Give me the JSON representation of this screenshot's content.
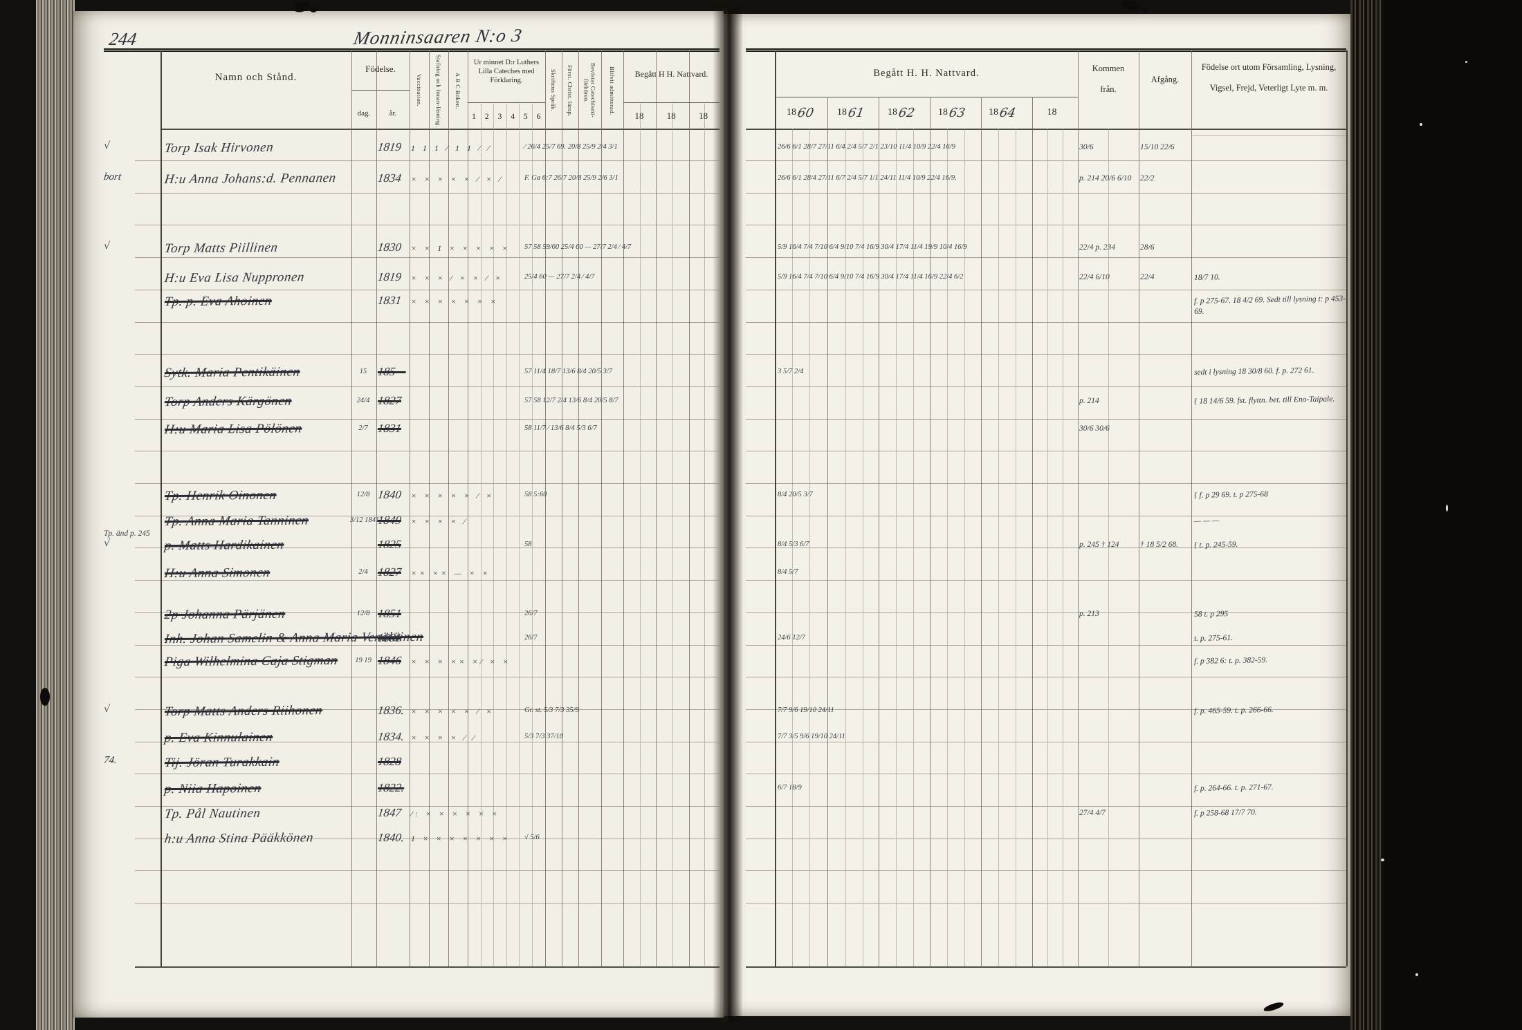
{
  "scan": {
    "page_number": "244",
    "title": "Monninsaaren N:o 3",
    "margin_note": "Tp. änd p. 245"
  },
  "left_header": {
    "namn": "Namn och Stånd.",
    "fodelse": "Födelse.",
    "dag": "dag.",
    "ar": "år.",
    "vaccination": "Vaccination.",
    "stafning": "Stafning och Innan-läsning.",
    "abc": "A B C Boken.",
    "cateches": "Ur minnet D:r Luthers Lilla Cateches med Förklaring.",
    "cateches_cols": [
      "1",
      "2",
      "3",
      "4",
      "5",
      "6"
    ],
    "skriftens": "Skriftens Språk.",
    "forst": "Först. Christ. lärop.",
    "bevistat": "Bevistat Catechismi-förhören.",
    "blifvit": "Blifvit admitterad.",
    "begatt": "Begått H H. Nattvard.",
    "begatt_years": [
      "18",
      "18",
      "18"
    ]
  },
  "right_header": {
    "begatt": "Begått H. H. Nattvard.",
    "years": [
      {
        "printed": "18",
        "written": "60"
      },
      {
        "printed": "18",
        "written": "61"
      },
      {
        "printed": "18",
        "written": "62"
      },
      {
        "printed": "18",
        "written": "63"
      },
      {
        "printed": "18",
        "written": "64"
      },
      {
        "printed": "18",
        "written": ""
      }
    ],
    "kommen": "Kommen",
    "kommen2": "från.",
    "afgang": "Afgång.",
    "fodelseort": "Födelse ort utom Församling, Lysning,",
    "fodelseort2": "Vigsel, Frejd, Veterligt Lyte m. m."
  },
  "rows": [
    {
      "margin": "√",
      "name": "Torp Isak Hirvonen",
      "ar": "1819",
      "marks": "1  1  1  ⁄  1  1  ⁄  ⁄",
      "ldates": "⁄     26/4 25/7 69.   20/8 25/9   2/4  3/1",
      "rdates": "26/6      6/1 28/7 27/11 6/4       2/4 5/7     2/1 23/10     11/4 10/9     22/4 16/9",
      "kommen": "30/6",
      "afgang": "15/10 22/6",
      "note": ""
    },
    {
      "margin": "bort",
      "name": "H:u Anna Johans:d. Pennanen",
      "ar": "1834",
      "marks": "×  ×  ×  ×  ×  ⁄  ×  ⁄",
      "ldates": "F. Ga 6:7    26/7    20/8 25/9    2/6  3/1",
      "rdates": "26/6      6/1 28/4 27/11 6/7       2/4 5/7     1/1 24/11     11/4 10/9     22/4 16/9.",
      "kommen": "p. 214   20/6  6/10",
      "afgang": "22/2",
      "note": ""
    },
    {
      "margin": "√",
      "name": "Torp Matts Piillinen",
      "ar": "1830",
      "marks": "× ×  1  ×  ×  ×  ×  ×",
      "ldates": "57 58  59/60    25/4 60 —   27/7  2/4    ⁄   4/7",
      "rdates": "5/9 16/4    7/4 7/10   6/4 9/10    7/4 16/9    30/4 17/4    11/4 19/9    10/4 16/9",
      "kommen": "22/4   p. 234",
      "afgang": "28/6",
      "note": ""
    },
    {
      "name": "H:u Eva Lisa Nuppronen",
      "ar": "1819",
      "marks": "×  ×  ×  ⁄  ×  ×  ⁄  ×",
      "ldates": "25/4 60 —    27/7  2/4    ⁄   4/7",
      "rdates": "5/9 16/4    7/4 7/10   6/4 9/10    7/4 16/9    30/4 17/4    11/4 16/9    22/4  6/2",
      "kommen": "22/4   6/10",
      "afgang": "22/4",
      "note": "18/7 10."
    },
    {
      "name": "Tp. p. Eva Ahoinen",
      "struck": true,
      "ar": "1831",
      "marks": "×  ×  ×  ×  ×  ×  ×",
      "kommen": "",
      "note": "f. p 275-67.  18 4/2 69.  Sedt till lysning  t: p 453-69."
    },
    {
      "name": "Sytk. Maria Pentikäinen",
      "struck": true,
      "dag": "15",
      "ar": "185—",
      "struckAr": true,
      "ldates": "57      11/4 18/7   13/6     8/4 20/5 3/7",
      "rdates": "3     5/7      2/4",
      "note": "sedt i lysning 18 30/8 60.   f. p. 272 61."
    },
    {
      "name": "Torp Anders Kärgönen",
      "struck": true,
      "dag": "24/4",
      "ar": "1827",
      "struckAr": true,
      "ldates": "57 58    12/7  2/4    13/6     8/4 20/5 8/7",
      "kommen": "p. 214",
      "note": "{ 18 14/6 59. fst. flyttn. bet. till Eno-Taipale."
    },
    {
      "name": "H:u Maria Lisa Pölönen",
      "struck": true,
      "dag": "2/7",
      "ar": "1831",
      "struckAr": true,
      "ldates": "58    11/7  ⁄    13/6     8/4 5/3 6/7",
      "kommen": "30/6    30/6",
      "note": ""
    },
    {
      "name": "Tp. Henrik Oinonen",
      "struck": true,
      "dag": "12/8",
      "ar": "1840",
      "marks": "×  ×  ×  ×  ×  ⁄  ×",
      "ldates": "58  5:60",
      "rdates": "8/4 20/5 3/7",
      "note": "{ f. p 29 69.   t. p 275-68"
    },
    {
      "name": "Tp. Anna Maria Tanninen",
      "struck": true,
      "dag": "3/12  1841.",
      "ar": "1849",
      "struckAr": true,
      "marks": "×  ×  ×  ×  ⁄",
      "note": "—   —    —"
    },
    {
      "margin": "√",
      "name": "p. Matts Hardikainen",
      "struck": true,
      "ar": "1825",
      "struckAr": true,
      "ldates": "58",
      "rdates": "8/4  5/3  6/7",
      "kommen": "p. 245 †   124",
      "afgang": "† 18 5/2 68.",
      "note": "{ t. p. 245-59."
    },
    {
      "name": "H:u Anna Simonen",
      "struck": true,
      "dag": "2/4",
      "ar": "1827",
      "struckAr": true,
      "marks": "××  ××   —   ×  ×",
      "rdates": "8/4  5/7",
      "note": ""
    },
    {
      "name": "2p Johanna Pärjänen",
      "struck": true,
      "dag": "12/8",
      "ar": "1851",
      "struckAr": true,
      "ldates": "26/7",
      "kommen": "p. 213",
      "note": "58 t. p 295"
    },
    {
      "name": "Inh. Johan Samelin & Anna Maria Venäläinen",
      "struck": true,
      "ar": "1801",
      "struckAr": true,
      "ldates": "26/7",
      "rdates": "24/6  12/7",
      "note": "t. p. 275-61."
    },
    {
      "name": "Piga Wilhelmina Caja Stigman",
      "struck": true,
      "dag": "19  19",
      "ar": "1846",
      "struckAr": true,
      "marks": "× ×  ×  ××  ×⁄  × ×",
      "note": "f. p 382 6:   t. p. 382-59."
    },
    {
      "margin": "√",
      "name": "Torp Matts Anders Riihonen",
      "struck": true,
      "ar": "1836.",
      "marks": "×  ×  ×  ×  ×  ⁄  ×",
      "ldates": "Gr. st.      5/3 7/3   35/9",
      "rdates": "7/7       9/6 19/10  24/11",
      "note": "f. p. 465-59.  t. p. 266-66."
    },
    {
      "name": "p. Eva Kinnulainen",
      "struck": true,
      "ar": "1834.",
      "marks": "×  ×  ×  ×  ⁄  ⁄",
      "ldates": "5/3 7/3   37/10",
      "rdates": "7/7      3/5 9/6 19/10 24/11",
      "note": ""
    },
    {
      "margin": "74.",
      "name": "Tij. Jöran Turakkain",
      "struck": true,
      "ar": "1828",
      "struckAr": true,
      "note": ""
    },
    {
      "name": "p. Niia Hapoinen",
      "struck": true,
      "ar": "1822.",
      "struckAr": true,
      "rdates": "6/7  18/9",
      "note": "f. p. 264-66.  t. p. 271-67."
    },
    {
      "name": "Tp. Pål Nautinen",
      "ar": "1847",
      "marks": "⁄:   ×  ×  ×  ×  ×  ×",
      "kommen": "27/4  4/7",
      "note": "f. p 258-68      17/7 70."
    },
    {
      "name": "h:u Anna Stina Pääkkönen",
      "ar": "1840.",
      "marks": "1   ×  ×  ×  ×  ×  ×  ×",
      "ldates": "√      5/6",
      "note": ""
    }
  ]
}
